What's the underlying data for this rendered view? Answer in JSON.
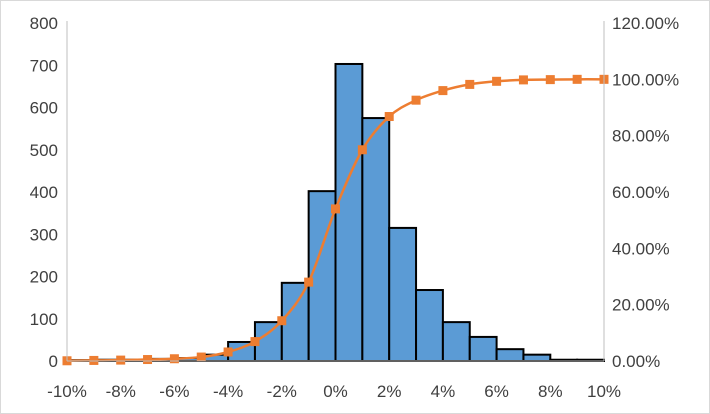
{
  "chart_data": {
    "type": "bar",
    "title": "",
    "xlabel": "",
    "ylabel": "",
    "ylim": [
      0,
      800
    ],
    "y2lim": [
      0,
      120
    ],
    "grid": false,
    "x_ticks": [
      "-10%",
      "-8%",
      "-6%",
      "-4%",
      "-2%",
      "0%",
      "2%",
      "4%",
      "6%",
      "8%",
      "10%"
    ],
    "y_ticks": [
      "0",
      "100",
      "200",
      "300",
      "400",
      "500",
      "600",
      "700",
      "800"
    ],
    "y2_ticks": [
      "0.00%",
      "20.00%",
      "40.00%",
      "60.00%",
      "80.00%",
      "100.00%",
      "120.00%"
    ],
    "series": [
      {
        "kind": "histogram",
        "color": "#5b9bd5",
        "bin_start": -10,
        "bin_width": 1,
        "values": [
          2,
          3,
          3,
          5,
          7,
          15,
          45,
          92,
          185,
          402,
          703,
          575,
          315,
          168,
          92,
          57,
          28,
          15,
          3,
          3
        ]
      },
      {
        "kind": "cumulative",
        "axis": "secondary",
        "color": "#ed7d31",
        "marker": "square",
        "x": [
          -10,
          -9,
          -8,
          -7,
          -6,
          -5,
          -4,
          -3,
          -2,
          -1,
          0,
          1,
          2,
          3,
          4,
          5,
          6,
          7,
          8,
          9,
          10
        ],
        "values": [
          0.08,
          0.2,
          0.32,
          0.52,
          0.8,
          1.4,
          3.2,
          6.9,
          14.3,
          28.0,
          54.0,
          75.0,
          86.8,
          92.6,
          96.0,
          98.2,
          99.3,
          99.8,
          99.9,
          100.0,
          100.0
        ]
      }
    ]
  }
}
